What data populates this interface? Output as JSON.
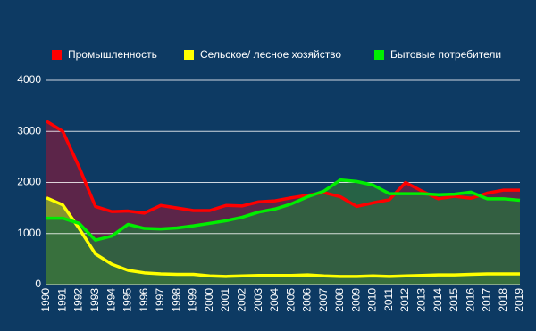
{
  "chart_data": {
    "type": "line",
    "categories": [
      "1990",
      "1991",
      "1992",
      "1993",
      "1994",
      "1995",
      "1996",
      "1997",
      "1998",
      "1999",
      "2000",
      "2001",
      "2002",
      "2003",
      "2004",
      "2005",
      "2006",
      "2007",
      "2008",
      "2009",
      "2010",
      "2011",
      "2012",
      "2013",
      "2014",
      "2015",
      "2016",
      "2017",
      "2018",
      "2019"
    ],
    "series": [
      {
        "name": "Промышленность",
        "color": "#ff0000",
        "fill": "#6b2244",
        "values": [
          3200,
          3000,
          2300,
          1530,
          1430,
          1440,
          1400,
          1550,
          1500,
          1450,
          1450,
          1550,
          1540,
          1620,
          1640,
          1700,
          1750,
          1800,
          1720,
          1530,
          1600,
          1660,
          2000,
          1830,
          1680,
          1730,
          1690,
          1790,
          1850,
          1850
        ]
      },
      {
        "name": "Сельское/ лесное хозяйство",
        "color": "#ffff00",
        "fill": "#8aa82c",
        "values": [
          1700,
          1560,
          1100,
          600,
          400,
          280,
          230,
          210,
          200,
          200,
          170,
          160,
          170,
          180,
          180,
          180,
          190,
          170,
          160,
          160,
          170,
          160,
          170,
          180,
          190,
          190,
          200,
          210,
          210,
          210
        ]
      },
      {
        "name": "Бытовые потребители",
        "color": "#00ee00",
        "fill": "#2c6a40",
        "values": [
          1300,
          1300,
          1200,
          870,
          950,
          1180,
          1100,
          1090,
          1110,
          1150,
          1200,
          1250,
          1320,
          1420,
          1480,
          1580,
          1720,
          1830,
          2050,
          2020,
          1950,
          1780,
          1780,
          1780,
          1760,
          1770,
          1810,
          1680,
          1680,
          1650
        ]
      }
    ],
    "ylim": [
      0,
      4000
    ],
    "yticks": [
      0,
      1000,
      2000,
      3000,
      4000
    ],
    "grid": true
  }
}
